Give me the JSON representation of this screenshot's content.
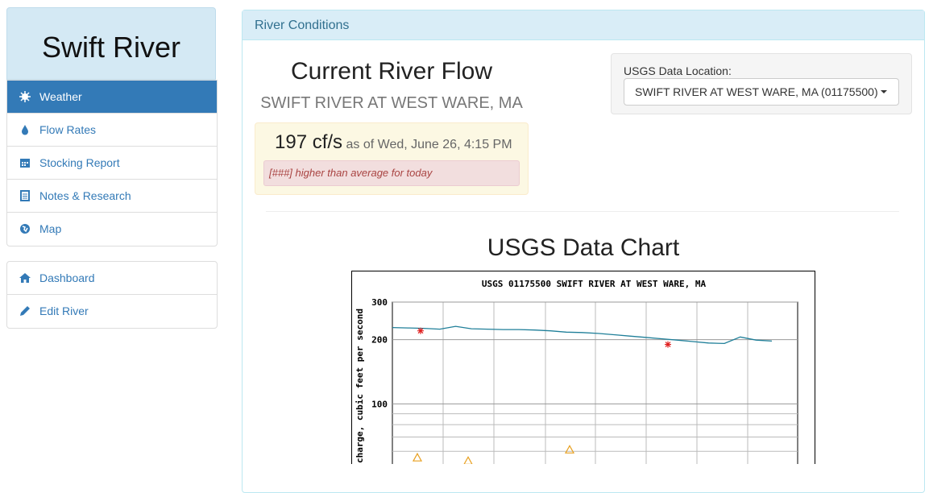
{
  "sidebar": {
    "title": "Swift River",
    "nav": [
      "Weather",
      "Flow Rates",
      "Stocking Report",
      "Notes & Research",
      "Map"
    ],
    "nav_secondary": [
      "Dashboard",
      "Edit River"
    ]
  },
  "panel": {
    "heading": "River Conditions",
    "title": "Current River Flow",
    "subtitle": "SWIFT RIVER AT WEST WARE, MA",
    "flow": "197 cf/s",
    "as_of": "as of Wed, June 26, 4:15 PM",
    "alert": "[###] higher than average for today",
    "location_label": "USGS Data Location:",
    "location": "SWIFT RIVER AT WEST WARE, MA (01175500)",
    "chart_heading": "USGS Data Chart"
  },
  "chart_data": {
    "type": "line",
    "title": "USGS 01175500 SWIFT RIVER AT WEST WARE, MA",
    "y_label": "Discharge, cubic feet per second",
    "log_scale": true,
    "grid": true,
    "ylim": [
      50,
      300
    ],
    "yticks": [
      100,
      200,
      300
    ],
    "minor_yticks": [
      60,
      70,
      80,
      90
    ],
    "series": [
      {
        "color": "#1f7f99",
        "values": [
          228,
          227,
          226,
          224,
          231,
          225,
          224,
          223,
          223,
          222,
          220,
          217,
          216,
          214,
          211,
          208,
          205,
          202,
          199,
          196,
          193,
          192,
          206,
          199,
          197
        ]
      }
    ],
    "measurements": {
      "color": "#e02020",
      "values": [
        220,
        190
      ]
    },
    "medians": {
      "color": "#e8a020",
      "values": [
        56,
        54,
        61
      ]
    }
  }
}
